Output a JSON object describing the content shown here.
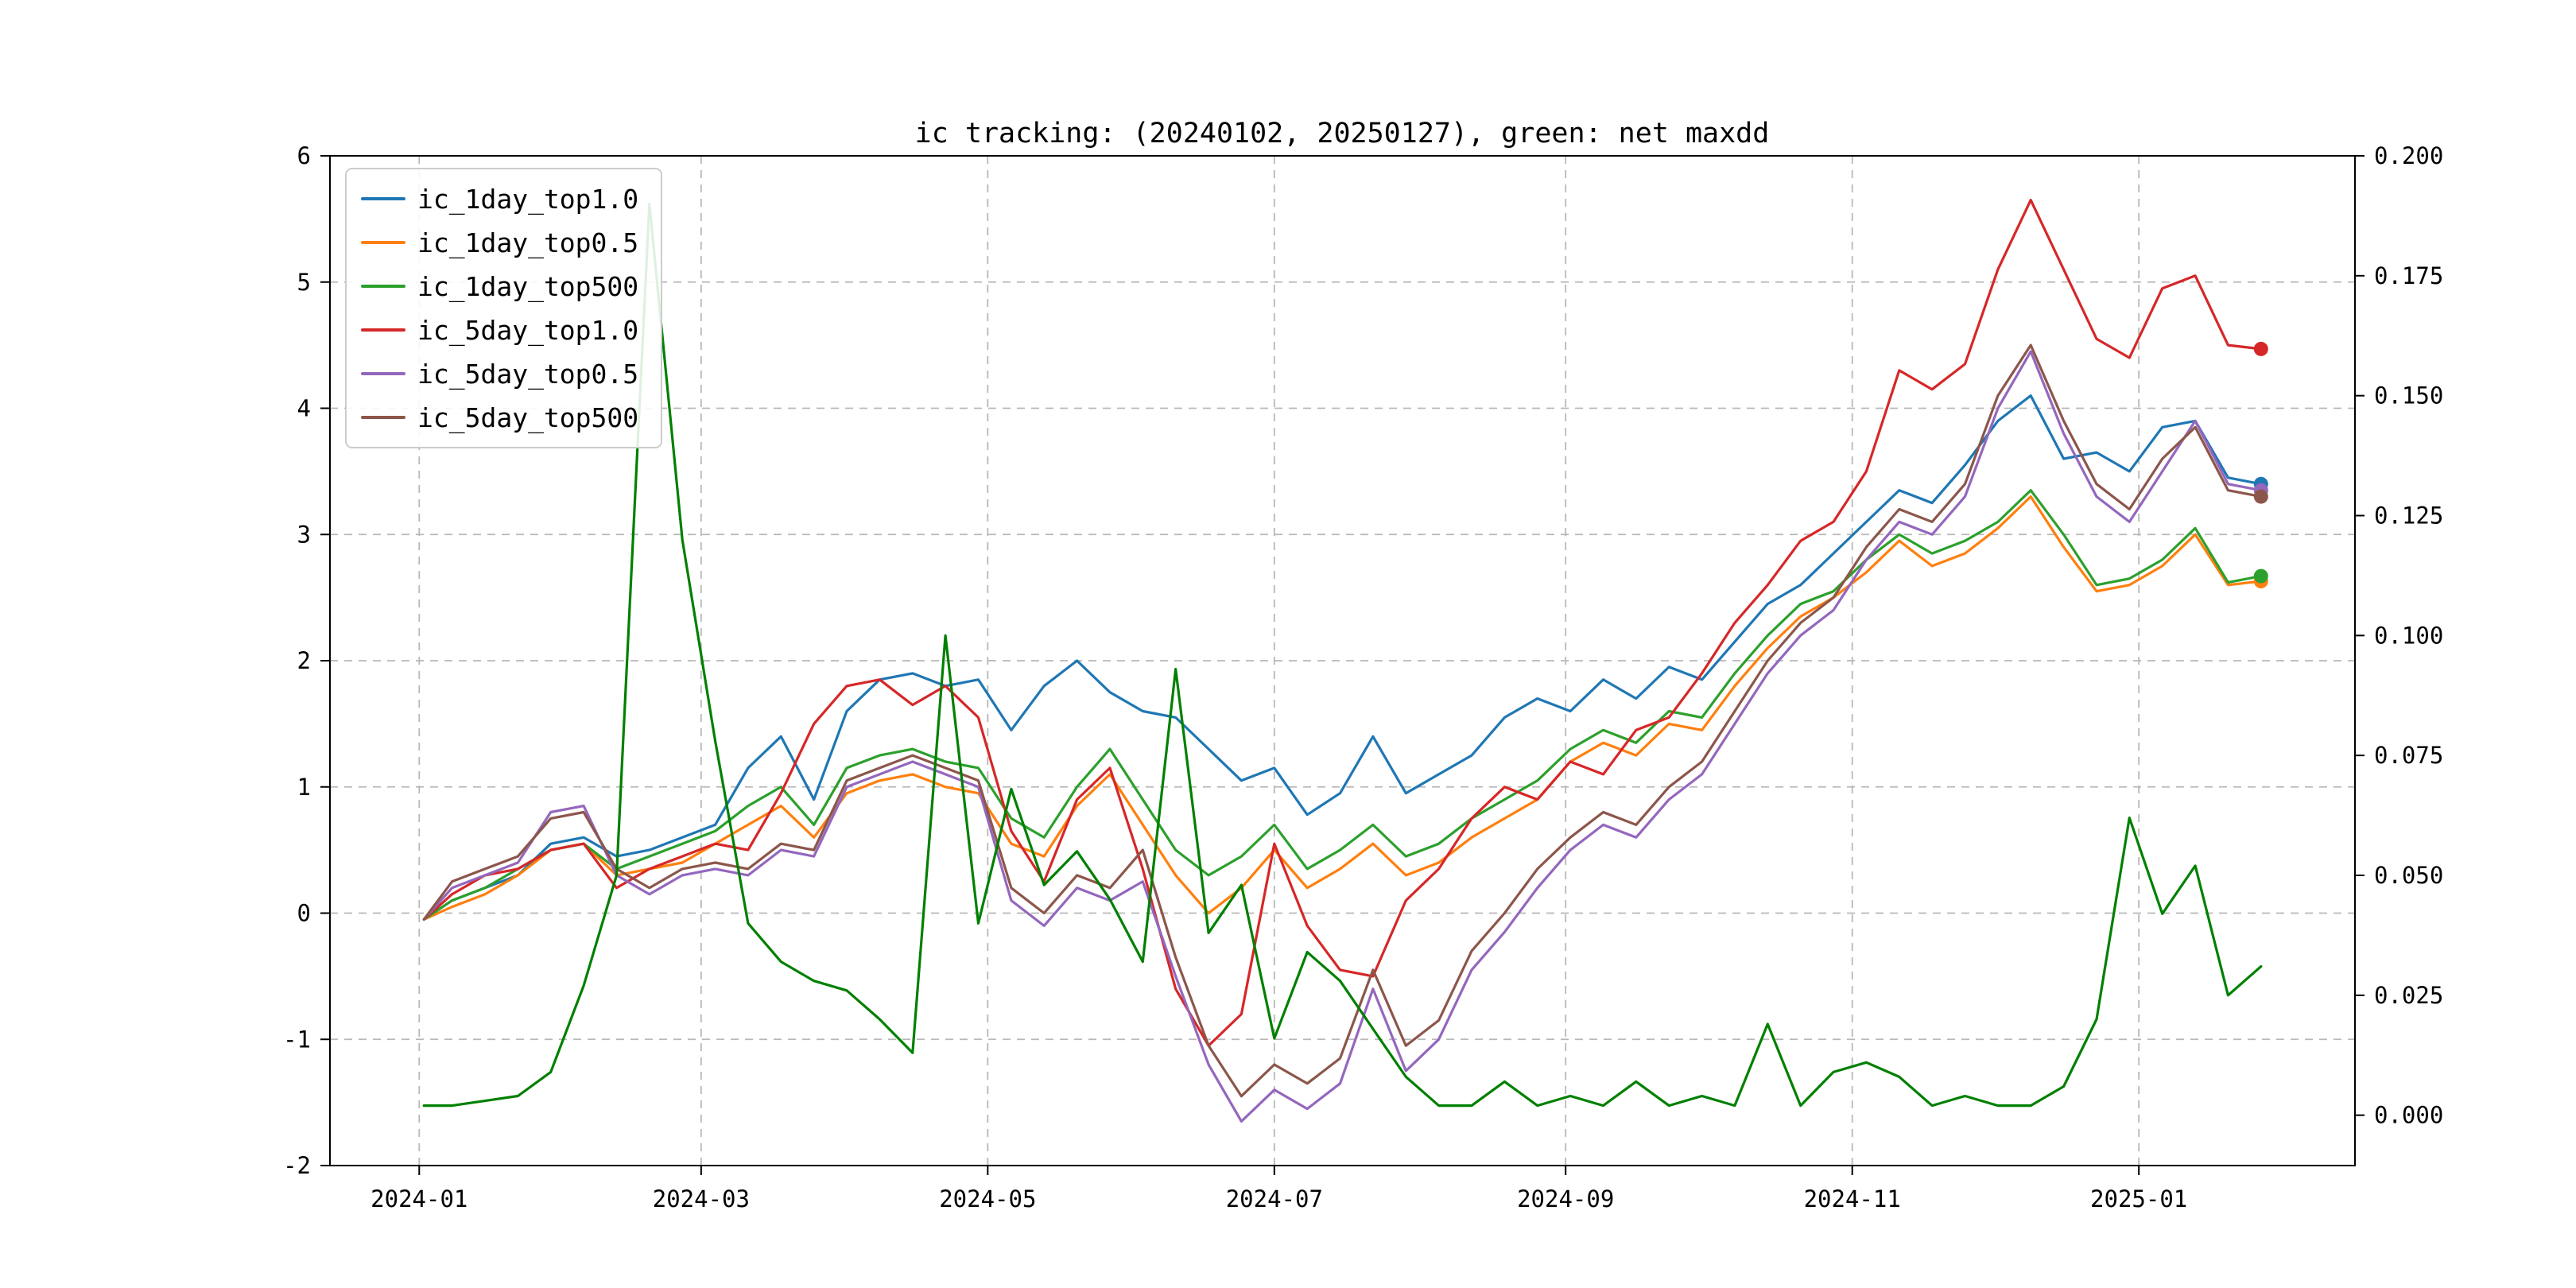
{
  "title": "ic tracking: (20240102, 20250127), green: net maxdd",
  "chart_data": {
    "type": "line",
    "grid": true,
    "legend_position": "upper left",
    "x_dates": [
      "2024-01-02",
      "2024-01-08",
      "2024-01-15",
      "2024-01-22",
      "2024-01-29",
      "2024-02-05",
      "2024-02-12",
      "2024-02-19",
      "2024-02-26",
      "2024-03-04",
      "2024-03-11",
      "2024-03-18",
      "2024-03-25",
      "2024-04-01",
      "2024-04-08",
      "2024-04-15",
      "2024-04-22",
      "2024-04-29",
      "2024-05-06",
      "2024-05-13",
      "2024-05-20",
      "2024-05-27",
      "2024-06-03",
      "2024-06-10",
      "2024-06-17",
      "2024-06-24",
      "2024-07-01",
      "2024-07-08",
      "2024-07-15",
      "2024-07-22",
      "2024-07-29",
      "2024-08-05",
      "2024-08-12",
      "2024-08-19",
      "2024-08-26",
      "2024-09-02",
      "2024-09-09",
      "2024-09-16",
      "2024-09-23",
      "2024-09-30",
      "2024-10-07",
      "2024-10-14",
      "2024-10-21",
      "2024-10-28",
      "2024-11-04",
      "2024-11-11",
      "2024-11-18",
      "2024-11-25",
      "2024-12-02",
      "2024-12-09",
      "2024-12-16",
      "2024-12-23",
      "2024-12-30",
      "2025-01-06",
      "2025-01-13",
      "2025-01-20",
      "2025-01-27"
    ],
    "series": [
      {
        "name": "ic_1day_top1.0",
        "color": "#1f77b4",
        "axis": "left",
        "in_legend": true,
        "end_marker": true,
        "values": [
          -0.05,
          0.1,
          0.2,
          0.3,
          0.55,
          0.6,
          0.45,
          0.5,
          0.6,
          0.7,
          1.15,
          1.4,
          0.9,
          1.6,
          1.85,
          1.9,
          1.8,
          1.85,
          1.45,
          1.8,
          2.0,
          1.75,
          1.6,
          1.55,
          1.3,
          1.05,
          1.15,
          0.78,
          0.95,
          1.4,
          0.95,
          1.1,
          1.25,
          1.55,
          1.7,
          1.6,
          1.85,
          1.7,
          1.95,
          1.85,
          2.15,
          2.45,
          2.6,
          2.85,
          3.1,
          3.35,
          3.25,
          3.55,
          3.9,
          4.1,
          3.6,
          3.65,
          3.5,
          3.85,
          3.9,
          3.45,
          3.4
        ]
      },
      {
        "name": "ic_1day_top0.5",
        "color": "#ff7f0e",
        "axis": "left",
        "in_legend": true,
        "end_marker": true,
        "values": [
          -0.05,
          0.05,
          0.15,
          0.3,
          0.5,
          0.55,
          0.3,
          0.35,
          0.4,
          0.55,
          0.7,
          0.85,
          0.6,
          0.95,
          1.05,
          1.1,
          1.0,
          0.95,
          0.55,
          0.45,
          0.85,
          1.1,
          0.7,
          0.3,
          0.0,
          0.2,
          0.5,
          0.2,
          0.35,
          0.55,
          0.3,
          0.4,
          0.6,
          0.75,
          0.9,
          1.2,
          1.35,
          1.25,
          1.5,
          1.45,
          1.8,
          2.1,
          2.35,
          2.5,
          2.7,
          2.95,
          2.75,
          2.85,
          3.05,
          3.3,
          2.9,
          2.55,
          2.6,
          2.75,
          3.0,
          2.6,
          2.63
        ]
      },
      {
        "name": "ic_1day_top500",
        "color": "#2ca02c",
        "axis": "left",
        "in_legend": true,
        "end_marker": true,
        "values": [
          -0.05,
          0.1,
          0.2,
          0.35,
          0.5,
          0.55,
          0.35,
          0.45,
          0.55,
          0.65,
          0.85,
          1.0,
          0.7,
          1.15,
          1.25,
          1.3,
          1.2,
          1.15,
          0.75,
          0.6,
          1.0,
          1.3,
          0.9,
          0.5,
          0.3,
          0.45,
          0.7,
          0.35,
          0.5,
          0.7,
          0.45,
          0.55,
          0.75,
          0.9,
          1.05,
          1.3,
          1.45,
          1.35,
          1.6,
          1.55,
          1.9,
          2.2,
          2.45,
          2.55,
          2.8,
          3.0,
          2.85,
          2.95,
          3.1,
          3.35,
          3.0,
          2.6,
          2.65,
          2.8,
          3.05,
          2.62,
          2.67
        ]
      },
      {
        "name": "ic_5day_top1.0",
        "color": "#d62728",
        "axis": "left",
        "in_legend": true,
        "end_marker": true,
        "values": [
          -0.05,
          0.15,
          0.3,
          0.35,
          0.5,
          0.55,
          0.2,
          0.35,
          0.45,
          0.55,
          0.5,
          0.95,
          1.5,
          1.8,
          1.85,
          1.65,
          1.8,
          1.55,
          0.65,
          0.25,
          0.9,
          1.15,
          0.35,
          -0.6,
          -1.05,
          -0.8,
          0.55,
          -0.1,
          -0.45,
          -0.5,
          0.1,
          0.35,
          0.75,
          1.0,
          0.9,
          1.2,
          1.1,
          1.45,
          1.55,
          1.9,
          2.3,
          2.6,
          2.95,
          3.1,
          3.5,
          4.3,
          4.15,
          4.35,
          5.1,
          5.65,
          5.1,
          4.55,
          4.4,
          4.95,
          5.05,
          4.5,
          4.47
        ]
      },
      {
        "name": "ic_5day_top0.5",
        "color": "#9467bd",
        "axis": "left",
        "in_legend": true,
        "end_marker": true,
        "values": [
          -0.05,
          0.2,
          0.3,
          0.4,
          0.8,
          0.85,
          0.3,
          0.15,
          0.3,
          0.35,
          0.3,
          0.5,
          0.45,
          1.0,
          1.1,
          1.2,
          1.1,
          1.0,
          0.1,
          -0.1,
          0.2,
          0.1,
          0.25,
          -0.5,
          -1.2,
          -1.65,
          -1.4,
          -1.55,
          -1.35,
          -0.6,
          -1.25,
          -1.0,
          -0.45,
          -0.15,
          0.2,
          0.5,
          0.7,
          0.6,
          0.9,
          1.1,
          1.5,
          1.9,
          2.2,
          2.4,
          2.8,
          3.1,
          3.0,
          3.3,
          4.0,
          4.45,
          3.8,
          3.3,
          3.1,
          3.5,
          3.9,
          3.4,
          3.35
        ]
      },
      {
        "name": "ic_5day_top500",
        "color": "#8c564b",
        "axis": "left",
        "in_legend": true,
        "end_marker": true,
        "values": [
          -0.05,
          0.25,
          0.35,
          0.45,
          0.75,
          0.8,
          0.35,
          0.2,
          0.35,
          0.4,
          0.35,
          0.55,
          0.5,
          1.05,
          1.15,
          1.25,
          1.15,
          1.05,
          0.2,
          0.0,
          0.3,
          0.2,
          0.5,
          -0.35,
          -1.05,
          -1.45,
          -1.2,
          -1.35,
          -1.15,
          -0.45,
          -1.05,
          -0.85,
          -0.3,
          0.0,
          0.35,
          0.6,
          0.8,
          0.7,
          1.0,
          1.2,
          1.6,
          2.0,
          2.3,
          2.5,
          2.9,
          3.2,
          3.1,
          3.4,
          4.1,
          4.5,
          3.9,
          3.4,
          3.2,
          3.6,
          3.85,
          3.35,
          3.3
        ]
      },
      {
        "name": "net maxdd",
        "color": "#008000",
        "axis": "right",
        "in_legend": false,
        "end_marker": false,
        "values": [
          0.002,
          0.002,
          0.003,
          0.004,
          0.009,
          0.027,
          0.05,
          0.19,
          0.12,
          0.078,
          0.04,
          0.032,
          0.028,
          0.026,
          0.02,
          0.013,
          0.1,
          0.04,
          0.068,
          0.048,
          0.055,
          0.045,
          0.032,
          0.093,
          0.038,
          0.048,
          0.016,
          0.034,
          0.028,
          0.018,
          0.008,
          0.002,
          0.002,
          0.007,
          0.002,
          0.004,
          0.002,
          0.007,
          0.002,
          0.004,
          0.002,
          0.019,
          0.002,
          0.009,
          0.011,
          0.008,
          0.002,
          0.004,
          0.002,
          0.002,
          0.006,
          0.02,
          0.062,
          0.042,
          0.052,
          0.025,
          0.031
        ]
      }
    ],
    "left_axis": {
      "min": -2,
      "max": 6,
      "ticks": [
        6,
        5,
        4,
        3,
        2,
        1,
        0,
        -1,
        -2
      ]
    },
    "right_axis": {
      "min": -0.0105,
      "max": 0.2,
      "ticks": [
        {
          "v": 0.2,
          "label": "0.200"
        },
        {
          "v": 0.175,
          "label": "0.175"
        },
        {
          "v": 0.15,
          "label": "0.150"
        },
        {
          "v": 0.125,
          "label": "0.125"
        },
        {
          "v": 0.1,
          "label": "0.100"
        },
        {
          "v": 0.075,
          "label": "0.075"
        },
        {
          "v": 0.05,
          "label": "0.050"
        },
        {
          "v": 0.025,
          "label": "0.025"
        },
        {
          "v": 0.0,
          "label": "0.000"
        }
      ]
    },
    "x_axis": {
      "min_date": "2023-12-13",
      "max_date": "2025-02-16",
      "ticks": [
        {
          "date": "2024-01-01",
          "label": "2024-01"
        },
        {
          "date": "2024-03-01",
          "label": "2024-03"
        },
        {
          "date": "2024-05-01",
          "label": "2024-05"
        },
        {
          "date": "2024-07-01",
          "label": "2024-07"
        },
        {
          "date": "2024-09-01",
          "label": "2024-09"
        },
        {
          "date": "2024-11-01",
          "label": "2024-11"
        },
        {
          "date": "2025-01-01",
          "label": "2025-01"
        }
      ]
    }
  },
  "colors": {
    "grid": "#b8b8b8",
    "spine": "#000000",
    "background": "#ffffff"
  }
}
